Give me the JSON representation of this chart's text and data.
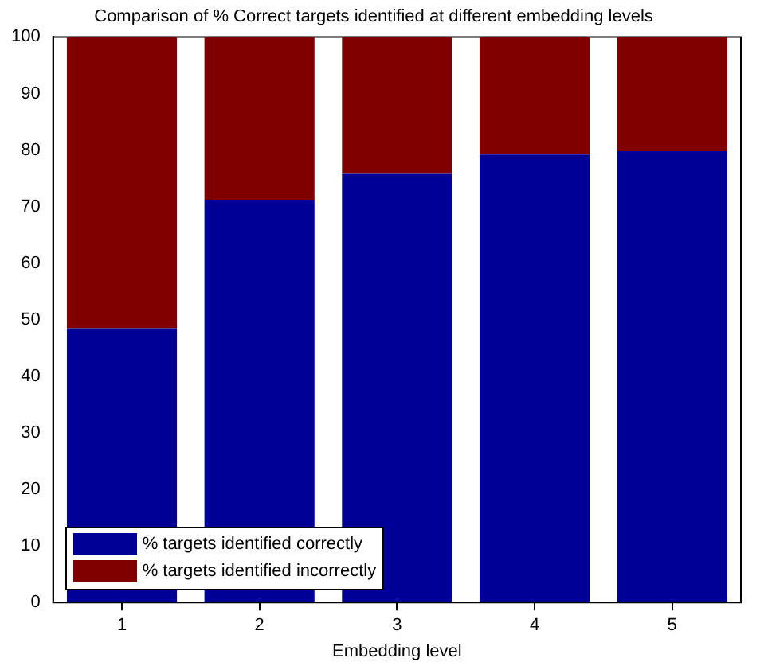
{
  "chart_data": {
    "type": "bar",
    "title": "Comparison of % Correct targets identified at different embedding levels",
    "xlabel": "Embedding level",
    "categories": [
      "1",
      "2",
      "3",
      "4",
      "5"
    ],
    "series": [
      {
        "name": "% targets identified correctly",
        "color": "#000096",
        "values": [
          48.5,
          71.2,
          75.8,
          79.2,
          79.8
        ]
      },
      {
        "name": "% targets identified incorrectly",
        "color": "#800000",
        "values": [
          51.5,
          28.8,
          24.2,
          20.8,
          20.2
        ]
      }
    ],
    "stacked": true,
    "ylim": [
      0,
      100
    ],
    "yticks": [
      0,
      10,
      20,
      30,
      40,
      50,
      60,
      70,
      80,
      90,
      100
    ],
    "grid": false,
    "legend": "bottom left"
  }
}
